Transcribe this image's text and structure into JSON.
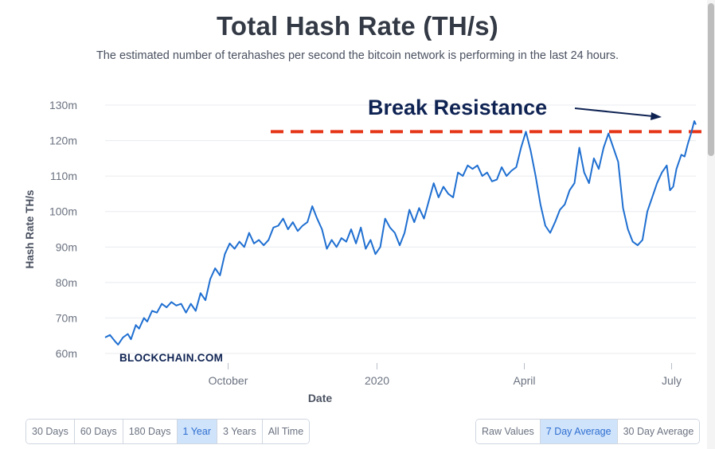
{
  "header": {
    "title": "Total Hash Rate (TH/s)",
    "subtitle": "The estimated number of terahashes per second the bitcoin network is performing in the last 24 hours."
  },
  "watermark": "BLOCKCHAIN.COM",
  "annotation": {
    "text": "Break Resistance",
    "resistance_level": 122.5,
    "line_color": "#e53517",
    "text_color": "#0f2353"
  },
  "range_buttons": {
    "items": [
      "30 Days",
      "60 Days",
      "180 Days",
      "1 Year",
      "3 Years",
      "All Time"
    ],
    "active": "1 Year"
  },
  "average_buttons": {
    "items": [
      "Raw Values",
      "7 Day Average",
      "30 Day Average"
    ],
    "active": "7 Day Average"
  },
  "chart_data": {
    "type": "line",
    "title": "Total Hash Rate (TH/s)",
    "subtitle": "The estimated number of terahashes per second the bitcoin network is performing in the last 24 hours.",
    "xlabel": "Date",
    "ylabel": "Hash Rate TH/s",
    "ylim": [
      60,
      130
    ],
    "xlim": [
      "2019-07-17",
      "2020-07-16"
    ],
    "y_ticks": [
      60,
      70,
      80,
      90,
      100,
      110,
      120,
      130
    ],
    "y_tick_labels": [
      "60m",
      "70m",
      "80m",
      "90m",
      "100m",
      "110m",
      "120m",
      "130m"
    ],
    "x_ticks": [
      {
        "date": "2019-10-01",
        "label": "October"
      },
      {
        "date": "2020-01-01",
        "label": "2020"
      },
      {
        "date": "2020-04-01",
        "label": "April"
      },
      {
        "date": "2020-07-01",
        "label": "July"
      }
    ],
    "grid": true,
    "series": [
      {
        "color": "#1f6fd1",
        "points": [
          [
            "2019-07-17",
            64.5
          ],
          [
            "2019-07-20",
            65.2
          ],
          [
            "2019-07-23",
            63.5
          ],
          [
            "2019-07-25",
            62.5
          ],
          [
            "2019-07-28",
            64.5
          ],
          [
            "2019-07-31",
            65.5
          ],
          [
            "2019-08-02",
            64.0
          ],
          [
            "2019-08-05",
            68.0
          ],
          [
            "2019-08-07",
            67.0
          ],
          [
            "2019-08-10",
            70.0
          ],
          [
            "2019-08-12",
            69.0
          ],
          [
            "2019-08-15",
            72.0
          ],
          [
            "2019-08-18",
            71.5
          ],
          [
            "2019-08-21",
            74.0
          ],
          [
            "2019-08-24",
            73.0
          ],
          [
            "2019-08-27",
            74.5
          ],
          [
            "2019-08-30",
            73.5
          ],
          [
            "2019-09-02",
            74.0
          ],
          [
            "2019-09-05",
            71.5
          ],
          [
            "2019-09-08",
            74.0
          ],
          [
            "2019-09-11",
            72.0
          ],
          [
            "2019-09-14",
            77.0
          ],
          [
            "2019-09-17",
            75.0
          ],
          [
            "2019-09-20",
            81.0
          ],
          [
            "2019-09-23",
            84.0
          ],
          [
            "2019-09-26",
            82.0
          ],
          [
            "2019-09-29",
            88.0
          ],
          [
            "2019-10-02",
            91.0
          ],
          [
            "2019-10-05",
            89.5
          ],
          [
            "2019-10-08",
            91.5
          ],
          [
            "2019-10-11",
            90.0
          ],
          [
            "2019-10-14",
            94.0
          ],
          [
            "2019-10-17",
            91.0
          ],
          [
            "2019-10-20",
            92.0
          ],
          [
            "2019-10-23",
            90.5
          ],
          [
            "2019-10-26",
            92.0
          ],
          [
            "2019-10-29",
            95.5
          ],
          [
            "2019-11-01",
            96.0
          ],
          [
            "2019-11-04",
            98.0
          ],
          [
            "2019-11-07",
            95.0
          ],
          [
            "2019-11-10",
            97.0
          ],
          [
            "2019-11-13",
            94.5
          ],
          [
            "2019-11-16",
            96.0
          ],
          [
            "2019-11-19",
            97.0
          ],
          [
            "2019-11-22",
            101.5
          ],
          [
            "2019-11-25",
            98.0
          ],
          [
            "2019-11-28",
            95.0
          ],
          [
            "2019-12-01",
            89.5
          ],
          [
            "2019-12-04",
            92.0
          ],
          [
            "2019-12-07",
            90.0
          ],
          [
            "2019-12-10",
            92.5
          ],
          [
            "2019-12-13",
            91.5
          ],
          [
            "2019-12-16",
            95.0
          ],
          [
            "2019-12-19",
            91.0
          ],
          [
            "2019-12-22",
            95.5
          ],
          [
            "2019-12-25",
            89.5
          ],
          [
            "2019-12-28",
            92.0
          ],
          [
            "2019-12-31",
            88.0
          ],
          [
            "2020-01-03",
            90.0
          ],
          [
            "2020-01-06",
            98.0
          ],
          [
            "2020-01-09",
            95.5
          ],
          [
            "2020-01-12",
            94.0
          ],
          [
            "2020-01-15",
            90.5
          ],
          [
            "2020-01-18",
            94.0
          ],
          [
            "2020-01-21",
            100.5
          ],
          [
            "2020-01-24",
            97.0
          ],
          [
            "2020-01-27",
            101.0
          ],
          [
            "2020-01-30",
            98.0
          ],
          [
            "2020-02-02",
            103.0
          ],
          [
            "2020-02-05",
            108.0
          ],
          [
            "2020-02-08",
            104.0
          ],
          [
            "2020-02-11",
            107.0
          ],
          [
            "2020-02-14",
            105.0
          ],
          [
            "2020-02-17",
            104.0
          ],
          [
            "2020-02-20",
            111.0
          ],
          [
            "2020-02-23",
            110.0
          ],
          [
            "2020-02-26",
            113.0
          ],
          [
            "2020-02-29",
            112.0
          ],
          [
            "2020-03-03",
            113.0
          ],
          [
            "2020-03-06",
            110.0
          ],
          [
            "2020-03-09",
            111.0
          ],
          [
            "2020-03-12",
            108.5
          ],
          [
            "2020-03-15",
            109.0
          ],
          [
            "2020-03-18",
            112.5
          ],
          [
            "2020-03-21",
            110.0
          ],
          [
            "2020-03-24",
            111.5
          ],
          [
            "2020-03-27",
            112.5
          ],
          [
            "2020-03-30",
            118.0
          ],
          [
            "2020-04-02",
            122.5
          ],
          [
            "2020-04-05",
            117.0
          ],
          [
            "2020-04-08",
            110.0
          ],
          [
            "2020-04-11",
            102.0
          ],
          [
            "2020-04-14",
            96.0
          ],
          [
            "2020-04-17",
            94.0
          ],
          [
            "2020-04-20",
            97.0
          ],
          [
            "2020-04-23",
            100.5
          ],
          [
            "2020-04-26",
            102.0
          ],
          [
            "2020-04-29",
            106.0
          ],
          [
            "2020-05-02",
            108.0
          ],
          [
            "2020-05-05",
            118.0
          ],
          [
            "2020-05-08",
            111.0
          ],
          [
            "2020-05-11",
            108.0
          ],
          [
            "2020-05-14",
            115.0
          ],
          [
            "2020-05-17",
            112.0
          ],
          [
            "2020-05-20",
            118.0
          ],
          [
            "2020-05-23",
            122.0
          ],
          [
            "2020-05-26",
            118.0
          ],
          [
            "2020-05-29",
            114.0
          ],
          [
            "2020-06-01",
            101.0
          ],
          [
            "2020-06-04",
            95.0
          ],
          [
            "2020-06-07",
            91.5
          ],
          [
            "2020-06-10",
            90.5
          ],
          [
            "2020-06-13",
            92.0
          ],
          [
            "2020-06-16",
            100.0
          ],
          [
            "2020-06-19",
            104.0
          ],
          [
            "2020-06-22",
            108.0
          ],
          [
            "2020-06-25",
            111.0
          ],
          [
            "2020-06-28",
            113.0
          ],
          [
            "2020-06-30",
            106.0
          ],
          [
            "2020-07-02",
            107.0
          ],
          [
            "2020-07-04",
            112.0
          ],
          [
            "2020-07-07",
            116.0
          ],
          [
            "2020-07-09",
            115.5
          ],
          [
            "2020-07-11",
            119.0
          ],
          [
            "2020-07-13",
            122.0
          ],
          [
            "2020-07-15",
            125.5
          ],
          [
            "2020-07-16",
            124.5
          ]
        ]
      }
    ]
  }
}
